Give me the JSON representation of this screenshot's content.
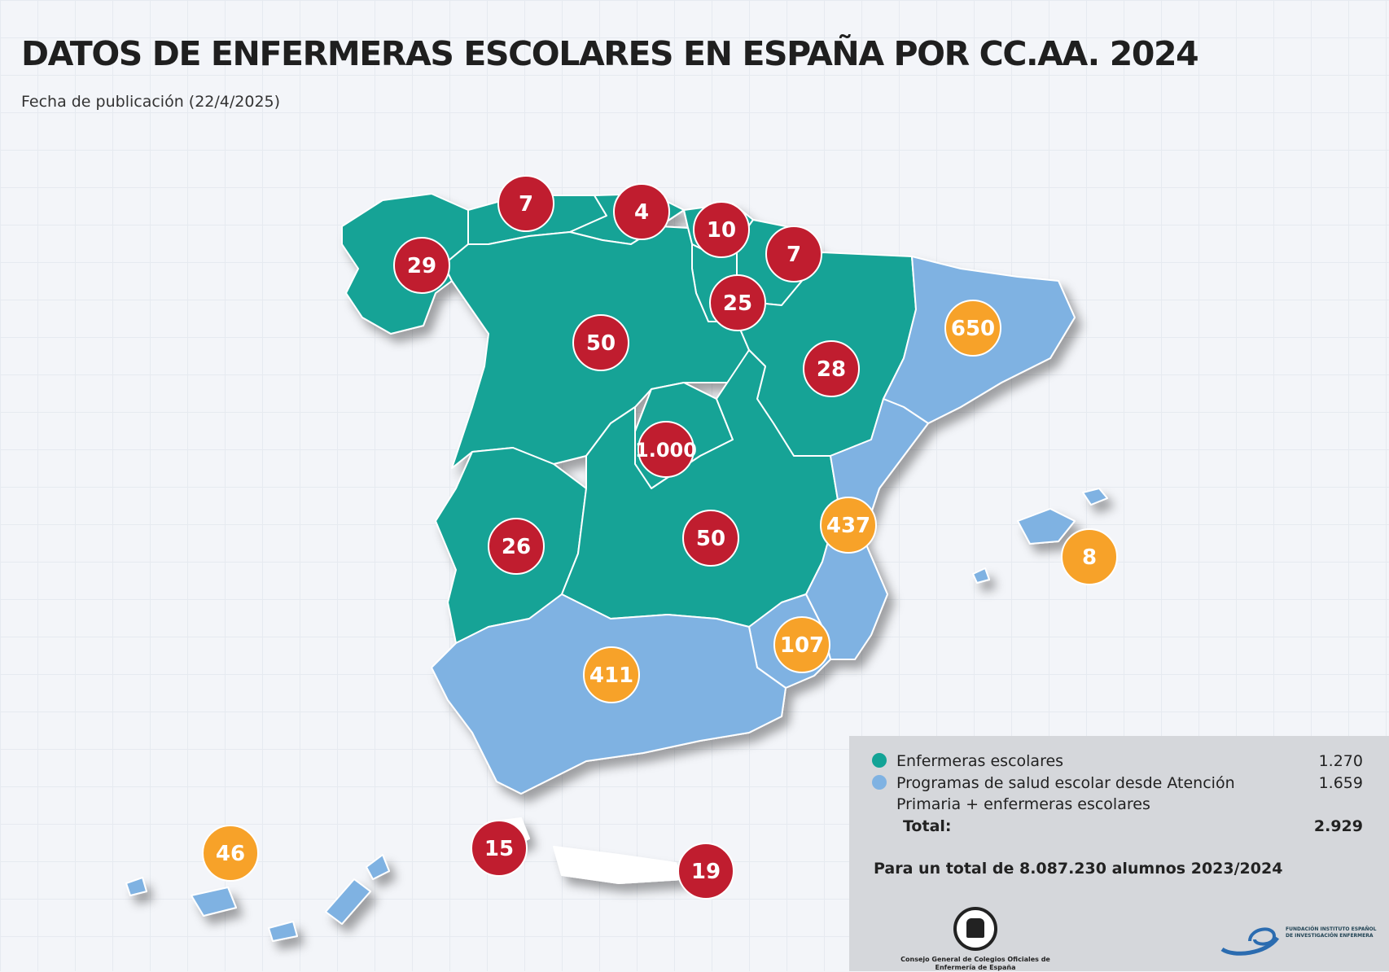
{
  "title": "DATOS DE ENFERMERAS ESCOLARES EN ESPAÑA POR CC.AA. 2024",
  "subtitle": "Fecha de publicación (22/4/2025)",
  "colors": {
    "teal_region": "#13a396",
    "blue_region": "#7fb2e2",
    "red_badge": "#c01d2f",
    "orange_badge": "#f7a229",
    "legend_bg": "#d5d7db"
  },
  "regions": [
    {
      "name": "Galicia",
      "value": "29",
      "category": "enfermeras_escolares"
    },
    {
      "name": "Asturias",
      "value": "7",
      "category": "enfermeras_escolares"
    },
    {
      "name": "Cantabria",
      "value": "4",
      "category": "enfermeras_escolares"
    },
    {
      "name": "País Vasco",
      "value": "10",
      "category": "enfermeras_escolares"
    },
    {
      "name": "Navarra",
      "value": "7",
      "category": "enfermeras_escolares"
    },
    {
      "name": "La Rioja",
      "value": "25",
      "category": "enfermeras_escolares"
    },
    {
      "name": "Castilla y León",
      "value": "50",
      "category": "enfermeras_escolares"
    },
    {
      "name": "Aragón",
      "value": "28",
      "category": "enfermeras_escolares"
    },
    {
      "name": "Cataluña",
      "value": "650",
      "category": "programas_atencion_primaria"
    },
    {
      "name": "Madrid",
      "value": "1.000",
      "category": "enfermeras_escolares"
    },
    {
      "name": "Extremadura",
      "value": "26",
      "category": "enfermeras_escolares"
    },
    {
      "name": "Castilla-La Mancha",
      "value": "50",
      "category": "enfermeras_escolares"
    },
    {
      "name": "Comunidad Valenciana",
      "value": "437",
      "category": "programas_atencion_primaria"
    },
    {
      "name": "Islas Baleares",
      "value": "8",
      "category": "programas_atencion_primaria"
    },
    {
      "name": "Región de Murcia",
      "value": "107",
      "category": "programas_atencion_primaria"
    },
    {
      "name": "Andalucía",
      "value": "411",
      "category": "programas_atencion_primaria"
    },
    {
      "name": "Islas Canarias",
      "value": "46",
      "category": "programas_atencion_primaria"
    },
    {
      "name": "Ceuta",
      "value": "15",
      "category": "enfermeras_escolares"
    },
    {
      "name": "Melilla",
      "value": "19",
      "category": "enfermeras_escolares"
    }
  ],
  "legend": {
    "items": [
      {
        "label": "Enfermeras escolares",
        "value": "1.270",
        "color": "#13a396"
      },
      {
        "label": "Programas de salud escolar desde Atención",
        "label2": "Primaria + enfermeras escolares",
        "value": "1.659",
        "color": "#7fb2e2"
      }
    ],
    "total_label": "Total:",
    "total_value": "2.929",
    "students": "Para un total de 8.087.230 alumnos 2023/2024"
  },
  "logos": {
    "left_org": "Consejo General de Colegios Oficiales de Enfermería de España",
    "right_org": "FUNDACIÓN INSTITUTO ESPAÑOL DE INVESTIGACIÓN ENFERMERA"
  }
}
